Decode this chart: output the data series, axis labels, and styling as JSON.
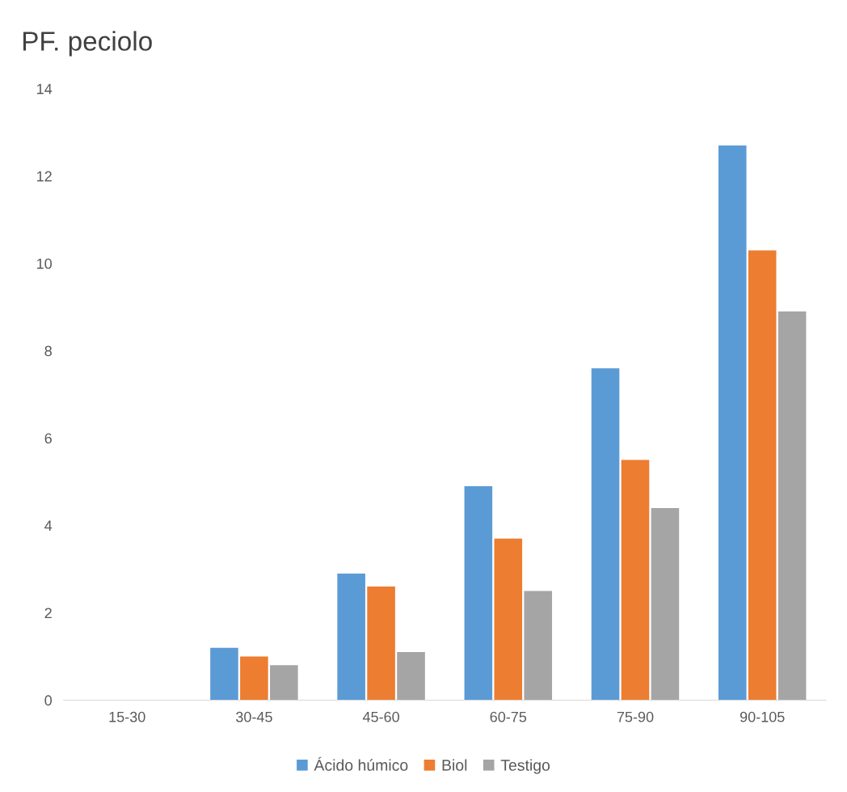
{
  "chart_data": {
    "type": "bar",
    "title": "PF. peciolo",
    "categories": [
      "15-30",
      "30-45",
      "45-60",
      "60-75",
      "75-90",
      "90-105"
    ],
    "series": [
      {
        "name": "Ácido húmico",
        "color": "#5b9bd5",
        "values": [
          0,
          1.2,
          2.9,
          4.9,
          7.6,
          12.7
        ]
      },
      {
        "name": "Biol",
        "color": "#ed7d31",
        "values": [
          0,
          1.0,
          2.6,
          3.7,
          5.5,
          10.3
        ]
      },
      {
        "name": "Testigo",
        "color": "#a5a5a5",
        "values": [
          0,
          0.8,
          1.1,
          2.5,
          4.4,
          8.9
        ]
      }
    ],
    "ylim": [
      0,
      14
    ],
    "yticks": [
      0,
      2,
      4,
      6,
      8,
      10,
      12,
      14
    ],
    "grid": false,
    "legend": "bottom"
  }
}
